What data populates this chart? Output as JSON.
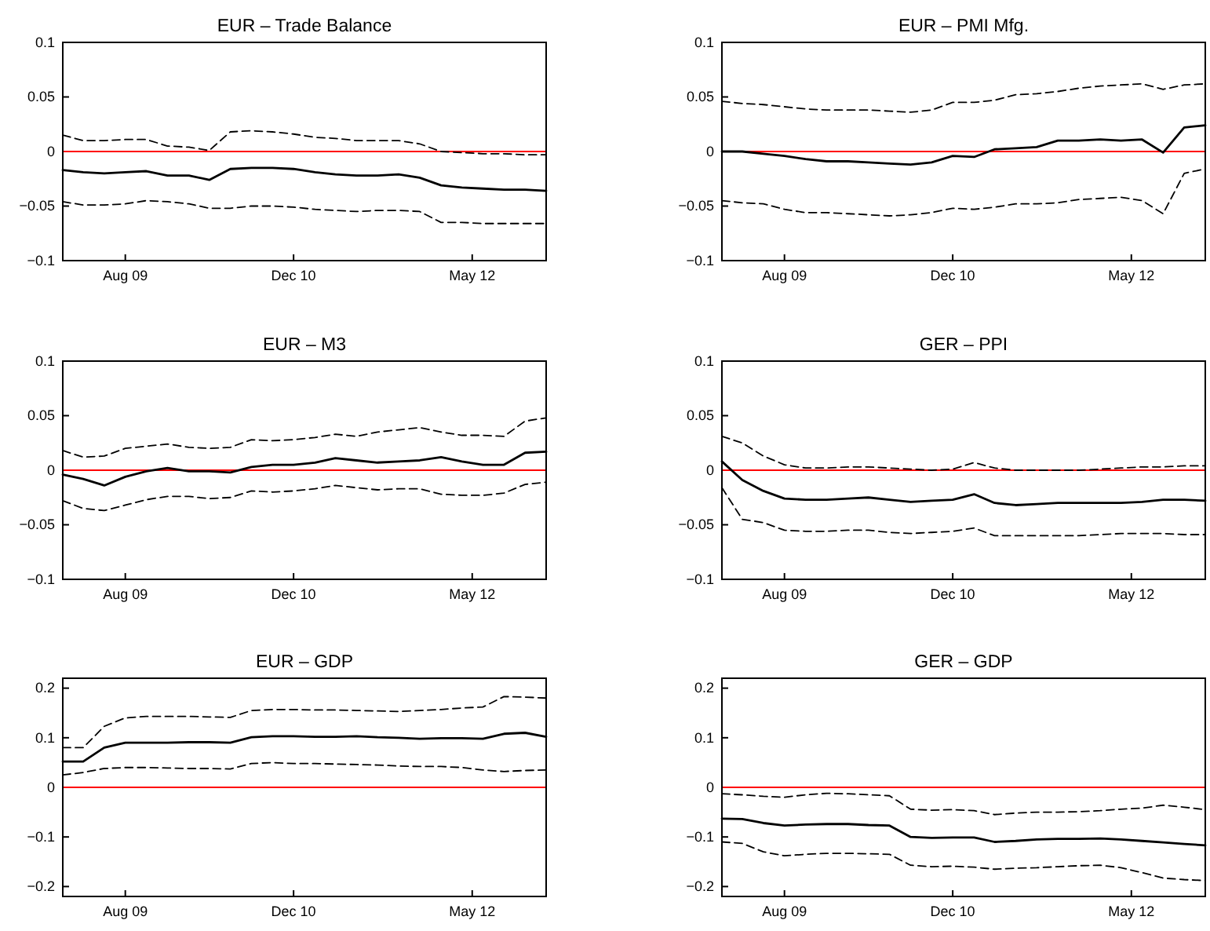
{
  "chart_data": [
    {
      "type": "line",
      "title": "EUR – Trade Balance",
      "x": [
        "2009-02",
        "2009-04",
        "2009-06",
        "2009-08",
        "2009-10",
        "2009-12",
        "2010-02",
        "2010-04",
        "2010-06",
        "2010-08",
        "2010-10",
        "2010-12",
        "2011-02",
        "2011-04",
        "2011-06",
        "2011-08",
        "2011-10",
        "2011-12",
        "2012-02",
        "2012-04",
        "2012-06",
        "2012-08",
        "2012-10",
        "2012-12"
      ],
      "xlim": [
        "2009-02",
        "2012-12"
      ],
      "xticks": [
        {
          "value": "2009-08",
          "label": "Aug 09"
        },
        {
          "value": "2010-12",
          "label": "Dec 10"
        },
        {
          "value": "2012-05",
          "label": "May 12"
        }
      ],
      "ylim": [
        -0.1,
        0.1
      ],
      "yticks": [
        -0.1,
        -0.05,
        0,
        0.05,
        0.1
      ],
      "grid": false,
      "ref_lines": [
        {
          "axis": "y",
          "value": 0,
          "color": "#ff0000"
        }
      ],
      "series": [
        {
          "color": "#000000",
          "line_style": "solid",
          "values": [
            -0.017,
            -0.019,
            -0.02,
            -0.019,
            -0.018,
            -0.022,
            -0.022,
            -0.026,
            -0.016,
            -0.015,
            -0.015,
            -0.016,
            -0.019,
            -0.021,
            -0.022,
            -0.022,
            -0.021,
            -0.024,
            -0.031,
            -0.033,
            -0.034,
            -0.035,
            -0.035,
            -0.036
          ]
        },
        {
          "color": "#000000",
          "line_style": "dashed",
          "values": [
            0.015,
            0.01,
            0.01,
            0.011,
            0.011,
            0.005,
            0.004,
            0.001,
            0.018,
            0.019,
            0.018,
            0.016,
            0.013,
            0.012,
            0.01,
            0.01,
            0.01,
            0.007,
            0,
            -0.001,
            -0.002,
            -0.002,
            -0.003,
            -0.003
          ]
        },
        {
          "color": "#000000",
          "line_style": "dashed",
          "values": [
            -0.046,
            -0.049,
            -0.049,
            -0.048,
            -0.045,
            -0.046,
            -0.048,
            -0.052,
            -0.052,
            -0.05,
            -0.05,
            -0.051,
            -0.053,
            -0.054,
            -0.055,
            -0.054,
            -0.054,
            -0.055,
            -0.065,
            -0.065,
            -0.066,
            -0.066,
            -0.066,
            -0.066
          ]
        }
      ]
    },
    {
      "type": "line",
      "title": "EUR – PMI Mfg.",
      "x": [
        "2009-02",
        "2009-04",
        "2009-06",
        "2009-08",
        "2009-10",
        "2009-12",
        "2010-02",
        "2010-04",
        "2010-06",
        "2010-08",
        "2010-10",
        "2010-12",
        "2011-02",
        "2011-04",
        "2011-06",
        "2011-08",
        "2011-10",
        "2011-12",
        "2012-02",
        "2012-04",
        "2012-06",
        "2012-08",
        "2012-10",
        "2012-12"
      ],
      "xlim": [
        "2009-02",
        "2012-12"
      ],
      "xticks": [
        {
          "value": "2009-08",
          "label": "Aug 09"
        },
        {
          "value": "2010-12",
          "label": "Dec 10"
        },
        {
          "value": "2012-05",
          "label": "May 12"
        }
      ],
      "ylim": [
        -0.1,
        0.1
      ],
      "yticks": [
        -0.1,
        -0.05,
        0,
        0.05,
        0.1
      ],
      "grid": false,
      "ref_lines": [
        {
          "axis": "y",
          "value": 0,
          "color": "#ff0000"
        }
      ],
      "series": [
        {
          "color": "#000000",
          "line_style": "solid",
          "values": [
            0,
            0,
            -0.002,
            -0.004,
            -0.007,
            -0.009,
            -0.009,
            -0.01,
            -0.011,
            -0.012,
            -0.01,
            -0.004,
            -0.005,
            0.002,
            0.003,
            0.004,
            0.01,
            0.01,
            0.011,
            0.01,
            0.011,
            -0.001,
            0.022,
            0.024
          ]
        },
        {
          "color": "#000000",
          "line_style": "dashed",
          "values": [
            0.046,
            0.044,
            0.043,
            0.041,
            0.039,
            0.038,
            0.038,
            0.038,
            0.037,
            0.036,
            0.038,
            0.045,
            0.045,
            0.047,
            0.052,
            0.053,
            0.055,
            0.058,
            0.06,
            0.061,
            0.062,
            0.057,
            0.061,
            0.062
          ]
        },
        {
          "color": "#000000",
          "line_style": "dashed",
          "values": [
            -0.045,
            -0.047,
            -0.048,
            -0.053,
            -0.056,
            -0.056,
            -0.057,
            -0.058,
            -0.059,
            -0.058,
            -0.056,
            -0.052,
            -0.053,
            -0.051,
            -0.048,
            -0.048,
            -0.047,
            -0.044,
            -0.043,
            -0.042,
            -0.045,
            -0.057,
            -0.02,
            -0.016
          ]
        }
      ]
    },
    {
      "type": "line",
      "title": "EUR – M3",
      "x": [
        "2009-02",
        "2009-04",
        "2009-06",
        "2009-08",
        "2009-10",
        "2009-12",
        "2010-02",
        "2010-04",
        "2010-06",
        "2010-08",
        "2010-10",
        "2010-12",
        "2011-02",
        "2011-04",
        "2011-06",
        "2011-08",
        "2011-10",
        "2011-12",
        "2012-02",
        "2012-04",
        "2012-06",
        "2012-08",
        "2012-10",
        "2012-12"
      ],
      "xlim": [
        "2009-02",
        "2012-12"
      ],
      "xticks": [
        {
          "value": "2009-08",
          "label": "Aug 09"
        },
        {
          "value": "2010-12",
          "label": "Dec 10"
        },
        {
          "value": "2012-05",
          "label": "May 12"
        }
      ],
      "ylim": [
        -0.1,
        0.1
      ],
      "yticks": [
        -0.1,
        -0.05,
        0,
        0.05,
        0.1
      ],
      "grid": false,
      "ref_lines": [
        {
          "axis": "y",
          "value": 0,
          "color": "#ff0000"
        }
      ],
      "series": [
        {
          "color": "#000000",
          "line_style": "solid",
          "values": [
            -0.004,
            -0.008,
            -0.014,
            -0.006,
            -0.001,
            0.002,
            -0.001,
            -0.001,
            -0.002,
            0.003,
            0.005,
            0.005,
            0.007,
            0.011,
            0.009,
            0.007,
            0.008,
            0.009,
            0.012,
            0.008,
            0.005,
            0.005,
            0.016,
            0.017
          ]
        },
        {
          "color": "#000000",
          "line_style": "dashed",
          "values": [
            0.018,
            0.012,
            0.013,
            0.02,
            0.022,
            0.024,
            0.021,
            0.02,
            0.021,
            0.028,
            0.027,
            0.028,
            0.03,
            0.033,
            0.031,
            0.035,
            0.037,
            0.039,
            0.035,
            0.032,
            0.032,
            0.031,
            0.045,
            0.048
          ]
        },
        {
          "color": "#000000",
          "line_style": "dashed",
          "values": [
            -0.028,
            -0.035,
            -0.037,
            -0.032,
            -0.027,
            -0.024,
            -0.024,
            -0.026,
            -0.025,
            -0.019,
            -0.02,
            -0.019,
            -0.017,
            -0.014,
            -0.016,
            -0.018,
            -0.017,
            -0.017,
            -0.022,
            -0.023,
            -0.023,
            -0.021,
            -0.013,
            -0.011
          ]
        }
      ]
    },
    {
      "type": "line",
      "title": "GER – PPI",
      "x": [
        "2009-02",
        "2009-04",
        "2009-06",
        "2009-08",
        "2009-10",
        "2009-12",
        "2010-02",
        "2010-04",
        "2010-06",
        "2010-08",
        "2010-10",
        "2010-12",
        "2011-02",
        "2011-04",
        "2011-06",
        "2011-08",
        "2011-10",
        "2011-12",
        "2012-02",
        "2012-04",
        "2012-06",
        "2012-08",
        "2012-10",
        "2012-12"
      ],
      "xlim": [
        "2009-02",
        "2012-12"
      ],
      "xticks": [
        {
          "value": "2009-08",
          "label": "Aug 09"
        },
        {
          "value": "2010-12",
          "label": "Dec 10"
        },
        {
          "value": "2012-05",
          "label": "May 12"
        }
      ],
      "ylim": [
        -0.1,
        0.1
      ],
      "yticks": [
        -0.1,
        -0.05,
        0,
        0.05,
        0.1
      ],
      "grid": false,
      "ref_lines": [
        {
          "axis": "y",
          "value": 0,
          "color": "#ff0000"
        }
      ],
      "series": [
        {
          "color": "#000000",
          "line_style": "solid",
          "values": [
            0.008,
            -0.009,
            -0.019,
            -0.026,
            -0.027,
            -0.027,
            -0.026,
            -0.025,
            -0.027,
            -0.029,
            -0.028,
            -0.027,
            -0.022,
            -0.03,
            -0.032,
            -0.031,
            -0.03,
            -0.03,
            -0.03,
            -0.03,
            -0.029,
            -0.027,
            -0.027,
            -0.028
          ]
        },
        {
          "color": "#000000",
          "line_style": "dashed",
          "values": [
            0.031,
            0.025,
            0.013,
            0.005,
            0.002,
            0.002,
            0.003,
            0.003,
            0.002,
            0.001,
            0,
            0.001,
            0.007,
            0.002,
            0,
            0,
            0,
            0,
            0.001,
            0.002,
            0.003,
            0.003,
            0.004,
            0.004
          ]
        },
        {
          "color": "#000000",
          "line_style": "dashed",
          "values": [
            -0.016,
            -0.045,
            -0.048,
            -0.055,
            -0.056,
            -0.056,
            -0.055,
            -0.055,
            -0.057,
            -0.058,
            -0.057,
            -0.056,
            -0.053,
            -0.06,
            -0.06,
            -0.06,
            -0.06,
            -0.06,
            -0.059,
            -0.058,
            -0.058,
            -0.058,
            -0.059,
            -0.059
          ]
        }
      ]
    },
    {
      "type": "line",
      "title": "EUR – GDP",
      "x": [
        "2009-02",
        "2009-04",
        "2009-06",
        "2009-08",
        "2009-10",
        "2009-12",
        "2010-02",
        "2010-04",
        "2010-06",
        "2010-08",
        "2010-10",
        "2010-12",
        "2011-02",
        "2011-04",
        "2011-06",
        "2011-08",
        "2011-10",
        "2011-12",
        "2012-02",
        "2012-04",
        "2012-06",
        "2012-08",
        "2012-10",
        "2012-12"
      ],
      "xlim": [
        "2009-02",
        "2012-12"
      ],
      "xticks": [
        {
          "value": "2009-08",
          "label": "Aug 09"
        },
        {
          "value": "2010-12",
          "label": "Dec 10"
        },
        {
          "value": "2012-05",
          "label": "May 12"
        }
      ],
      "ylim": [
        -0.22,
        0.22
      ],
      "yticks": [
        -0.2,
        -0.1,
        0,
        0.1,
        0.2
      ],
      "grid": false,
      "ref_lines": [
        {
          "axis": "y",
          "value": 0,
          "color": "#ff0000"
        }
      ],
      "series": [
        {
          "color": "#000000",
          "line_style": "solid",
          "values": [
            0.052,
            0.052,
            0.08,
            0.09,
            0.09,
            0.09,
            0.091,
            0.091,
            0.09,
            0.101,
            0.103,
            0.103,
            0.102,
            0.102,
            0.103,
            0.101,
            0.1,
            0.098,
            0.099,
            0.099,
            0.098,
            0.108,
            0.11,
            0.102
          ]
        },
        {
          "color": "#000000",
          "line_style": "dashed",
          "values": [
            0.08,
            0.08,
            0.123,
            0.14,
            0.143,
            0.143,
            0.143,
            0.142,
            0.141,
            0.155,
            0.157,
            0.157,
            0.156,
            0.156,
            0.155,
            0.154,
            0.153,
            0.155,
            0.157,
            0.16,
            0.162,
            0.183,
            0.182,
            0.18
          ]
        },
        {
          "color": "#000000",
          "line_style": "dashed",
          "values": [
            0.025,
            0.03,
            0.038,
            0.04,
            0.04,
            0.039,
            0.038,
            0.038,
            0.037,
            0.048,
            0.05,
            0.048,
            0.048,
            0.047,
            0.046,
            0.045,
            0.043,
            0.042,
            0.042,
            0.04,
            0.035,
            0.032,
            0.034,
            0.035
          ]
        }
      ]
    },
    {
      "type": "line",
      "title": "GER – GDP",
      "x": [
        "2009-02",
        "2009-04",
        "2009-06",
        "2009-08",
        "2009-10",
        "2009-12",
        "2010-02",
        "2010-04",
        "2010-06",
        "2010-08",
        "2010-10",
        "2010-12",
        "2011-02",
        "2011-04",
        "2011-06",
        "2011-08",
        "2011-10",
        "2011-12",
        "2012-02",
        "2012-04",
        "2012-06",
        "2012-08",
        "2012-10",
        "2012-12"
      ],
      "xlim": [
        "2009-02",
        "2012-12"
      ],
      "xticks": [
        {
          "value": "2009-08",
          "label": "Aug 09"
        },
        {
          "value": "2010-12",
          "label": "Dec 10"
        },
        {
          "value": "2012-05",
          "label": "May 12"
        }
      ],
      "ylim": [
        -0.22,
        0.22
      ],
      "yticks": [
        -0.2,
        -0.1,
        0,
        0.1,
        0.2
      ],
      "grid": false,
      "ref_lines": [
        {
          "axis": "y",
          "value": 0,
          "color": "#ff0000"
        }
      ],
      "series": [
        {
          "color": "#000000",
          "line_style": "solid",
          "values": [
            -0.063,
            -0.064,
            -0.072,
            -0.077,
            -0.075,
            -0.074,
            -0.074,
            -0.076,
            -0.077,
            -0.1,
            -0.102,
            -0.101,
            -0.101,
            -0.11,
            -0.108,
            -0.105,
            -0.104,
            -0.104,
            -0.103,
            -0.105,
            -0.108,
            -0.111,
            -0.114,
            -0.117
          ]
        },
        {
          "color": "#000000",
          "line_style": "dashed",
          "values": [
            -0.013,
            -0.015,
            -0.018,
            -0.02,
            -0.015,
            -0.012,
            -0.013,
            -0.015,
            -0.017,
            -0.044,
            -0.046,
            -0.045,
            -0.047,
            -0.055,
            -0.052,
            -0.05,
            -0.05,
            -0.049,
            -0.047,
            -0.044,
            -0.042,
            -0.036,
            -0.04,
            -0.045
          ]
        },
        {
          "color": "#000000",
          "line_style": "dashed",
          "values": [
            -0.11,
            -0.113,
            -0.13,
            -0.138,
            -0.135,
            -0.133,
            -0.133,
            -0.134,
            -0.135,
            -0.157,
            -0.16,
            -0.159,
            -0.161,
            -0.165,
            -0.163,
            -0.162,
            -0.16,
            -0.158,
            -0.157,
            -0.162,
            -0.172,
            -0.183,
            -0.186,
            -0.188
          ]
        }
      ]
    }
  ]
}
